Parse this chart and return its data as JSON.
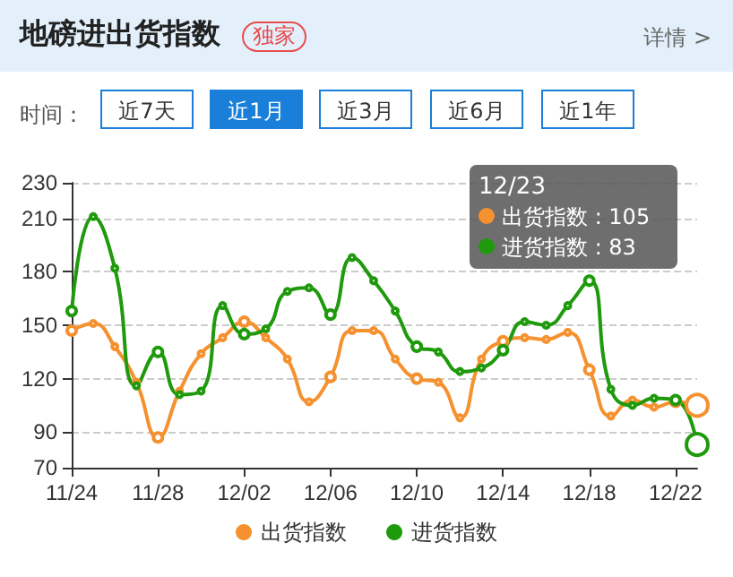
{
  "chart_data": {
    "type": "line",
    "title": "地磅进出货指数",
    "annotations": [
      "独家",
      "详情 >",
      "时间：",
      "近7天",
      "近1月",
      "近3月",
      "近6月",
      "近1年",
      "12/23",
      "出货指数 : 105",
      "进货指数 : 83"
    ],
    "categories": [
      "11/24",
      null,
      null,
      null,
      "11/28",
      null,
      null,
      null,
      "12/02",
      null,
      null,
      null,
      "12/06",
      null,
      null,
      null,
      "12/10",
      null,
      null,
      null,
      "12/14",
      null,
      null,
      null,
      "12/18",
      null,
      null,
      null,
      "12/22",
      null
    ],
    "series": [
      {
        "name": "出货指数",
        "color": "#f5912e",
        "values": [
          147,
          151,
          138,
          118,
          87,
          113,
          134,
          143,
          152,
          143,
          131,
          107,
          121,
          147,
          147,
          131,
          120,
          118,
          98,
          131,
          141,
          143,
          142,
          146,
          125,
          99,
          108,
          104,
          107,
          105
        ]
      },
      {
        "name": "进货指数",
        "color": "#1f9a0c",
        "values": [
          158,
          211,
          182,
          116,
          135,
          111,
          113,
          161,
          145,
          148,
          169,
          171,
          156,
          188,
          175,
          158,
          138,
          135,
          124,
          126,
          136,
          152,
          150,
          161,
          175,
          114,
          105,
          109,
          108,
          83
        ]
      }
    ],
    "ylim": [
      70,
      230
    ],
    "yticks": [
      70,
      90,
      120,
      150,
      180,
      210,
      230
    ],
    "grid": "y",
    "legend": "bottom",
    "marker": "circle",
    "line_style": "solid"
  }
}
